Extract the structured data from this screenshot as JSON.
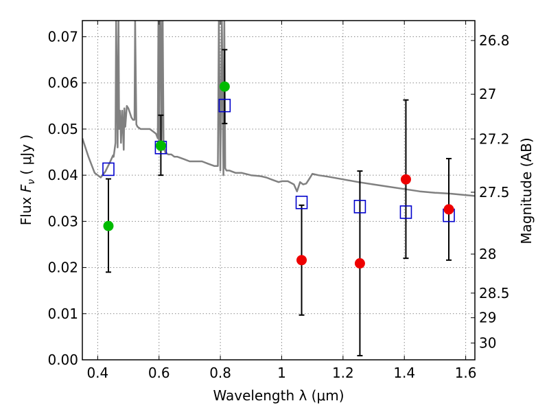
{
  "chart_data": {
    "type": "scatter",
    "xlabel": "Wavelength  λ (μm)",
    "ylabel": "Flux  F_ν  ( μJy )",
    "ylabel_right": "Magnitude (AB)",
    "xlim": [
      0.35,
      1.63
    ],
    "ylim": [
      0.0,
      0.0735
    ],
    "grid": true,
    "x_ticks": [
      0.4,
      0.6,
      0.8,
      1.0,
      1.2,
      1.4,
      1.6
    ],
    "x_tick_labels": [
      "0.4",
      "0.6",
      "0.8",
      "1",
      "1.2",
      "1.4",
      "1.6"
    ],
    "y_ticks": [
      0.0,
      0.01,
      0.02,
      0.03,
      0.04,
      0.05,
      0.06,
      0.07
    ],
    "y_tick_labels": [
      "0.00",
      "0.01",
      "0.02",
      "0.03",
      "0.04",
      "0.05",
      "0.06",
      "0.07"
    ],
    "right_ticks": [
      {
        "label": "26.8",
        "mag": 26.8
      },
      {
        "label": "27",
        "mag": 27.0
      },
      {
        "label": "27.2",
        "mag": 27.2
      },
      {
        "label": "27.5",
        "mag": 27.5
      },
      {
        "label": "28",
        "mag": 28.0
      },
      {
        "label": "28.5",
        "mag": 28.5
      },
      {
        "label": "29",
        "mag": 29.0
      },
      {
        "label": "30",
        "mag": 30.0
      }
    ],
    "series": [
      {
        "marker": "square-open",
        "color": "#0000cc",
        "points": [
          {
            "x": 0.435,
            "y": 0.0413
          },
          {
            "x": 0.606,
            "y": 0.046
          },
          {
            "x": 0.814,
            "y": 0.0551
          },
          {
            "x": 1.065,
            "y": 0.0341
          },
          {
            "x": 1.255,
            "y": 0.0332
          },
          {
            "x": 1.405,
            "y": 0.032
          },
          {
            "x": 1.545,
            "y": 0.0313
          }
        ]
      },
      {
        "marker": "circle-filled",
        "color": "#00bb00",
        "points": [
          {
            "x": 0.435,
            "y": 0.029,
            "yerr_low": 0.019,
            "yerr_high": 0.0392
          },
          {
            "x": 0.606,
            "y": 0.0464,
            "yerr_low": 0.04,
            "yerr_high": 0.053
          },
          {
            "x": 0.814,
            "y": 0.0592,
            "yerr_low": 0.0512,
            "yerr_high": 0.0672
          }
        ]
      },
      {
        "marker": "circle-filled",
        "color": "#ee0000",
        "points": [
          {
            "x": 1.065,
            "y": 0.0216,
            "yerr_low": 0.0097,
            "yerr_high": 0.0335
          },
          {
            "x": 1.255,
            "y": 0.0209,
            "yerr_low": 0.0009,
            "yerr_high": 0.0409
          },
          {
            "x": 1.405,
            "y": 0.0391,
            "yerr_low": 0.022,
            "yerr_high": 0.0563
          },
          {
            "x": 1.545,
            "y": 0.0326,
            "yerr_low": 0.0216,
            "yerr_high": 0.0436
          }
        ]
      }
    ],
    "spectrum": {
      "color": "#808080",
      "x": [
        0.35,
        0.37,
        0.39,
        0.41,
        0.425,
        0.44,
        0.45,
        0.452,
        0.458,
        0.46,
        0.465,
        0.468,
        0.47,
        0.473,
        0.476,
        0.48,
        0.485,
        0.487,
        0.49,
        0.495,
        0.5,
        0.505,
        0.51,
        0.515,
        0.52,
        0.522,
        0.526,
        0.53,
        0.54,
        0.55,
        0.56,
        0.57,
        0.58,
        0.59,
        0.596,
        0.598,
        0.6,
        0.603,
        0.606,
        0.608,
        0.612,
        0.615,
        0.618,
        0.62,
        0.63,
        0.64,
        0.65,
        0.66,
        0.68,
        0.7,
        0.72,
        0.74,
        0.76,
        0.78,
        0.792,
        0.795,
        0.8,
        0.805,
        0.81,
        0.813,
        0.816,
        0.82,
        0.83,
        0.85,
        0.87,
        0.9,
        0.93,
        0.95,
        0.97,
        0.99,
        1.0,
        1.02,
        1.04,
        1.05,
        1.06,
        1.07,
        1.08,
        1.09,
        1.1,
        1.12,
        1.15,
        1.2,
        1.25,
        1.3,
        1.35,
        1.4,
        1.45,
        1.5,
        1.55,
        1.6,
        1.63
      ],
      "y": [
        0.048,
        0.044,
        0.0405,
        0.0395,
        0.0408,
        0.0428,
        0.0443,
        0.044,
        0.047,
        0.0735,
        0.046,
        0.0735,
        0.05,
        0.054,
        0.047,
        0.054,
        0.0455,
        0.0545,
        0.0505,
        0.055,
        0.0545,
        0.0535,
        0.0525,
        0.052,
        0.052,
        0.0735,
        0.051,
        0.0505,
        0.05,
        0.05,
        0.05,
        0.05,
        0.0495,
        0.049,
        0.048,
        0.0735,
        0.046,
        0.0735,
        0.0735,
        0.0455,
        0.0735,
        0.0455,
        0.046,
        0.045,
        0.0445,
        0.0445,
        0.044,
        0.044,
        0.0435,
        0.043,
        0.043,
        0.043,
        0.0425,
        0.042,
        0.042,
        0.0735,
        0.041,
        0.0735,
        0.04,
        0.0735,
        0.0415,
        0.041,
        0.041,
        0.0405,
        0.0405,
        0.04,
        0.0398,
        0.0395,
        0.039,
        0.0385,
        0.0387,
        0.0387,
        0.038,
        0.0365,
        0.0385,
        0.038,
        0.0382,
        0.0392,
        0.0403,
        0.04,
        0.0397,
        0.0391,
        0.0385,
        0.038,
        0.0375,
        0.037,
        0.0365,
        0.0362,
        0.036,
        0.0357,
        0.0355
      ]
    }
  }
}
